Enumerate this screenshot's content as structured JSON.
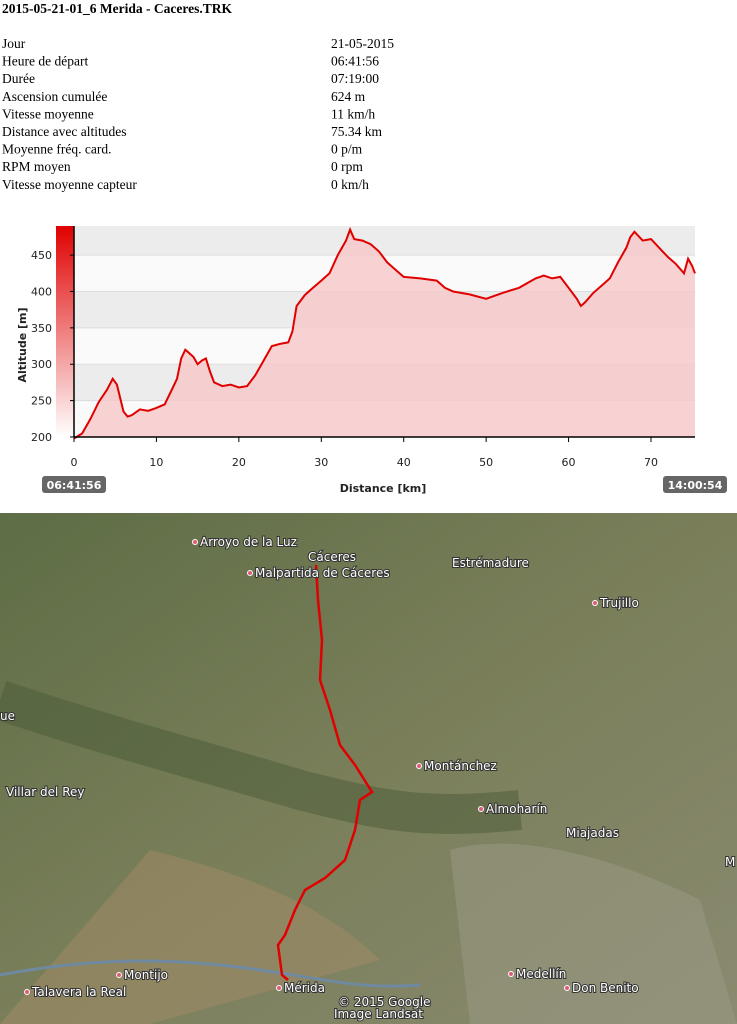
{
  "header": {
    "title": "2015-05-21-01_6 Merida - Caceres.TRK"
  },
  "table": {
    "rows": [
      [
        "Jour",
        "21-05-2015"
      ],
      [
        "Heure de départ",
        "06:41:56"
      ],
      [
        "Durée",
        "07:19:00"
      ],
      [
        "Ascension cumulée",
        "624 m"
      ],
      [
        "Vitesse moyenne",
        "11 km/h"
      ],
      [
        "Distance avec altitudes",
        "75.34 km"
      ],
      [
        "Moyenne fréq. card.",
        "0 p/m"
      ],
      [
        "RPM moyen",
        "0 rpm"
      ],
      [
        "Vitesse moyenne capteur",
        "0 km/h"
      ]
    ]
  },
  "chart_data": {
    "type": "area",
    "x_label": "Distance [km]",
    "y_label": "Altitude [m]",
    "start_label": "06:41:56",
    "end_label": "14:00:54",
    "color": "#e00000",
    "fill": "#f8c8c8",
    "xlim": [
      0,
      75.34
    ],
    "xticks": [
      0,
      10,
      20,
      30,
      40,
      50,
      60,
      70
    ],
    "ylim": [
      200,
      490
    ],
    "yticks": [
      200,
      250,
      300,
      350,
      400,
      450
    ],
    "x": [
      0,
      1,
      2,
      3,
      4,
      4.7,
      5.2,
      6,
      6.5,
      7,
      8,
      9,
      10,
      11,
      12,
      12.5,
      13,
      13.5,
      14,
      14.5,
      15,
      15.5,
      16,
      16.5,
      17,
      18,
      19,
      20,
      21,
      22,
      23,
      24,
      25,
      26,
      26.5,
      27,
      28,
      29,
      30,
      31,
      32,
      33,
      33.5,
      34,
      35,
      36,
      37,
      38,
      39,
      40,
      42,
      44,
      45,
      46,
      48,
      50,
      52,
      54,
      56,
      57,
      58,
      59,
      60,
      61,
      61.5,
      62,
      63,
      64,
      65,
      66,
      67,
      67.5,
      68,
      69,
      70,
      71,
      72,
      73,
      74,
      74.5,
      75,
      75.34
    ],
    "values": [
      198,
      205,
      225,
      248,
      265,
      280,
      272,
      235,
      228,
      230,
      238,
      236,
      240,
      245,
      268,
      280,
      308,
      320,
      315,
      310,
      300,
      305,
      308,
      290,
      275,
      270,
      272,
      268,
      270,
      285,
      305,
      325,
      328,
      330,
      345,
      380,
      395,
      405,
      415,
      425,
      450,
      470,
      485,
      472,
      470,
      465,
      455,
      440,
      430,
      420,
      418,
      415,
      405,
      400,
      396,
      390,
      398,
      405,
      418,
      422,
      418,
      420,
      405,
      390,
      380,
      385,
      398,
      408,
      418,
      440,
      460,
      475,
      482,
      470,
      472,
      460,
      448,
      438,
      425,
      445,
      435,
      425
    ]
  },
  "map": {
    "labels": [
      "Arroyo de la Luz",
      "Cáceres",
      "Malpartida de Cáceres",
      "Estrémadure",
      "Trujillo",
      "ue",
      "Montánchez",
      "Villar del Rey",
      "Almoharín",
      "Miajadas",
      "M",
      "Montijo",
      "Mérida",
      "Medellín",
      "Don Benito",
      "Talavera la Real",
      "© 2015 Google",
      "Image Landsat"
    ]
  }
}
